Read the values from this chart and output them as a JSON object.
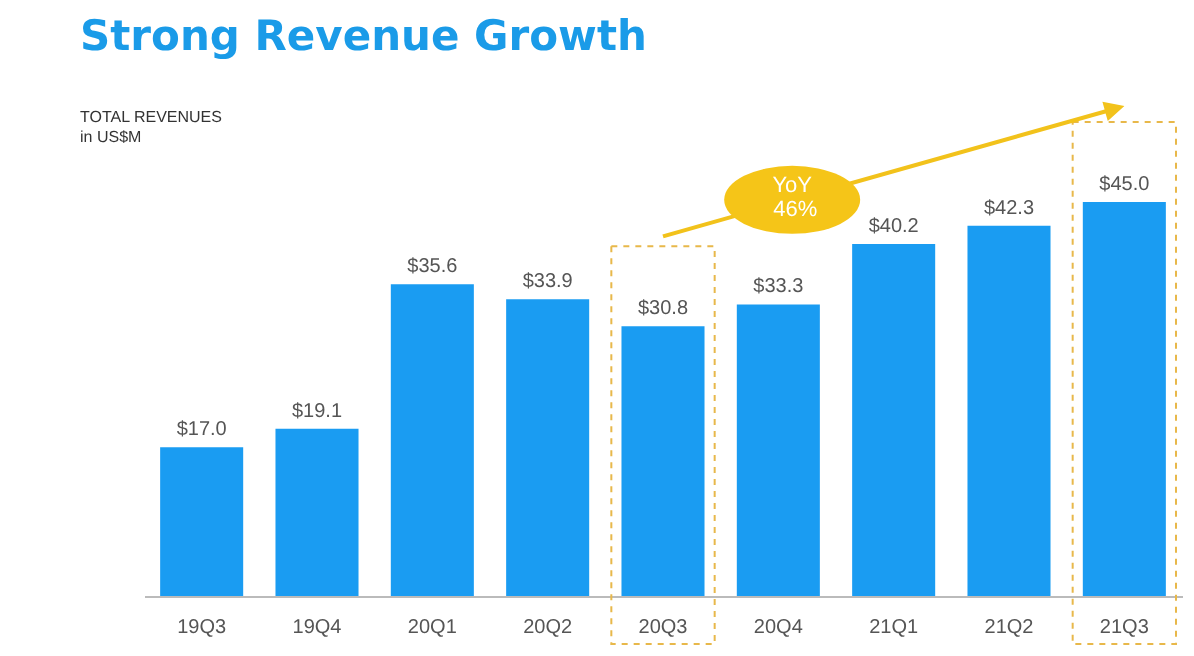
{
  "chart_data": {
    "type": "bar",
    "title": "Strong Revenue Growth",
    "subtitle": "TOTAL REVENUES",
    "annotations": [
      "in US$M",
      "YoY 46%"
    ],
    "categories": [
      "19Q3",
      "19Q4",
      "20Q1",
      "20Q2",
      "20Q3",
      "20Q4",
      "21Q1",
      "21Q2",
      "21Q3"
    ],
    "values": [
      17.0,
      19.1,
      35.6,
      33.9,
      30.8,
      33.3,
      40.2,
      42.3,
      45.0
    ],
    "value_labels": [
      "$17.0",
      "$19.1",
      "$35.6",
      "$33.9",
      "$30.8",
      "$33.3",
      "$40.2",
      "$42.3",
      "$45.0"
    ],
    "color": "#1a9cf2",
    "grid": false
  }
}
